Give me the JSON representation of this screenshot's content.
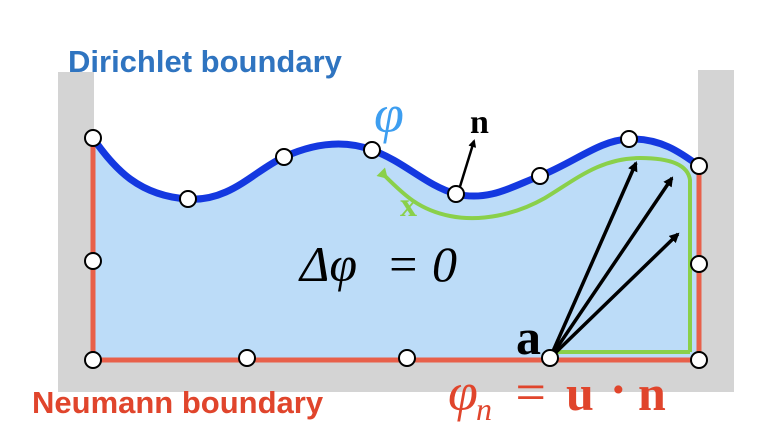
{
  "labels": {
    "dirichlet": "Dirichlet boundary",
    "neumann": "Neumann boundary",
    "phi": "φ",
    "normal": "n",
    "x_point": "x",
    "source_point": "a",
    "laplace_lhs": "Δφ",
    "laplace_eq": "=",
    "laplace_rhs": "0",
    "neumann_lhs": "φ",
    "neumann_sub": "n",
    "neumann_eq": "=",
    "neumann_u": "u",
    "neumann_dot": "·",
    "neumann_n": "n"
  },
  "colors": {
    "wall": "#d4d4d4",
    "fluid": "#bcdcf8",
    "dirichlet_curve": "#1438e0",
    "neumann_line": "#e8604a",
    "green_path": "#8ad04a",
    "dirichlet_text": "#2f74c0",
    "phi_text": "#3d9ef0",
    "neumann_text": "#e0452c",
    "arrow": "#000000",
    "node_fill": "#ffffff",
    "node_stroke": "#000000"
  }
}
